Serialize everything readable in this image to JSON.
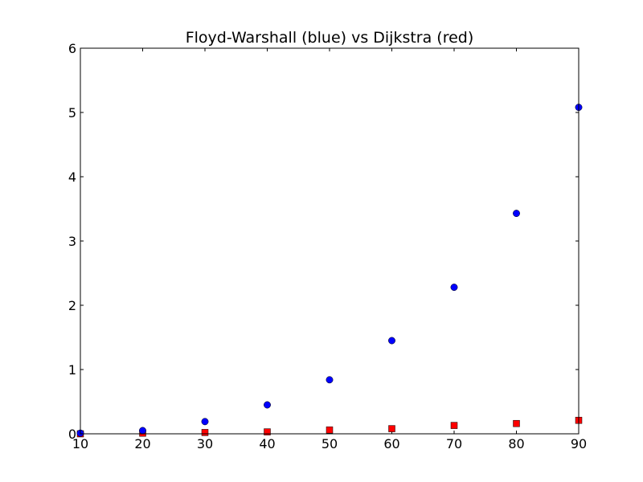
{
  "chart_data": {
    "type": "scatter",
    "title": "Floyd-Warshall (blue) vs Dijkstra (red)",
    "xlabel": "",
    "ylabel": "",
    "xlim": [
      10,
      90
    ],
    "ylim": [
      0,
      6
    ],
    "grid": false,
    "x_ticks": [
      "10",
      "20",
      "30",
      "40",
      "50",
      "60",
      "70",
      "80",
      "90"
    ],
    "y_ticks": [
      "0",
      "1",
      "2",
      "3",
      "4",
      "5",
      "6"
    ],
    "series": [
      {
        "marker": "circle",
        "color": "#0000ff",
        "x": [
          10,
          20,
          30,
          40,
          50,
          60,
          70,
          80,
          90
        ],
        "y": [
          0.01,
          0.05,
          0.19,
          0.45,
          0.84,
          1.45,
          2.28,
          3.43,
          5.08
        ]
      },
      {
        "marker": "square",
        "color": "#ff0000",
        "x": [
          10,
          20,
          30,
          40,
          50,
          60,
          70,
          80,
          90
        ],
        "y": [
          0.0,
          0.01,
          0.02,
          0.03,
          0.06,
          0.08,
          0.13,
          0.16,
          0.21
        ]
      }
    ]
  }
}
